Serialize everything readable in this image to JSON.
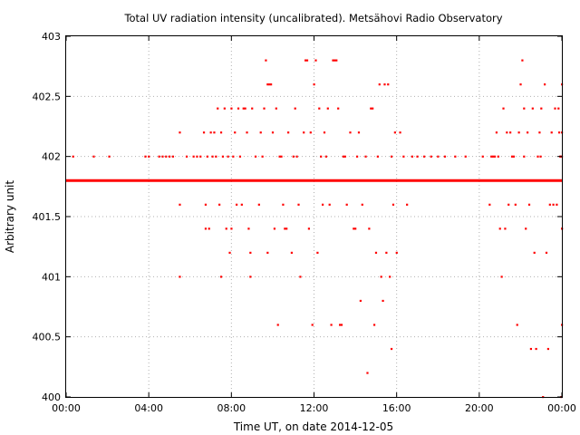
{
  "chart_data": {
    "type": "scatter",
    "title": "Total UV radiation intensity (uncalibrated). Metsähovi Radio Observatory",
    "xlabel": "Time UT, on date 2014-12-05",
    "ylabel": "Arbitrary unit",
    "xlim": [
      "00:00",
      "24:00"
    ],
    "ylim": [
      400,
      403
    ],
    "grid": true,
    "marker_color": "#ff0000",
    "x_ticks": [
      "00:00",
      "04:00",
      "08:00",
      "12:00",
      "16:00",
      "20:00",
      "00:00"
    ],
    "y_ticks": [
      "400",
      "400.5",
      "401",
      "401.5",
      "402",
      "402.5",
      "403"
    ],
    "baseline": {
      "value": 401.8,
      "from": "00:00",
      "to": "24:00"
    },
    "points": [
      [
        "00:20",
        402
      ],
      [
        "01:20",
        402
      ],
      [
        "02:05",
        402
      ],
      [
        "03:50",
        402
      ],
      [
        "04:00",
        402
      ],
      [
        "04:30",
        402
      ],
      [
        "04:40",
        402
      ],
      [
        "04:50",
        402
      ],
      [
        "05:00",
        402
      ],
      [
        "05:10",
        402
      ],
      [
        "05:30",
        402.2
      ],
      [
        "05:30",
        401.6
      ],
      [
        "05:30",
        401
      ],
      [
        "05:50",
        402
      ],
      [
        "06:10",
        402
      ],
      [
        "06:30",
        402
      ],
      [
        "06:40",
        402.2
      ],
      [
        "06:45",
        401.6
      ],
      [
        "06:45",
        401.4
      ],
      [
        "06:55",
        401.4
      ],
      [
        "07:00",
        402.2
      ],
      [
        "07:10",
        402.2
      ],
      [
        "07:15",
        402
      ],
      [
        "07:20",
        402.4
      ],
      [
        "07:25",
        401.6
      ],
      [
        "07:30",
        402.2
      ],
      [
        "07:30",
        401
      ],
      [
        "07:40",
        402.4
      ],
      [
        "07:45",
        401.4
      ],
      [
        "07:50",
        402
      ],
      [
        "07:55",
        401.2
      ],
      [
        "08:00",
        401.4
      ],
      [
        "08:00",
        402.4
      ],
      [
        "08:10",
        402.2
      ],
      [
        "08:15",
        401.6
      ],
      [
        "08:20",
        402.4
      ],
      [
        "08:25",
        402
      ],
      [
        "08:30",
        401.6
      ],
      [
        "08:35",
        402.4
      ],
      [
        "08:40",
        402.4
      ],
      [
        "08:45",
        402.2
      ],
      [
        "08:50",
        401.4
      ],
      [
        "08:55",
        401.2
      ],
      [
        "08:55",
        401
      ],
      [
        "09:00",
        402.4
      ],
      [
        "09:10",
        402
      ],
      [
        "09:20",
        401.6
      ],
      [
        "09:25",
        402.2
      ],
      [
        "09:35",
        402.4
      ],
      [
        "09:40",
        402.8
      ],
      [
        "09:45",
        402.6
      ],
      [
        "09:50",
        402.6
      ],
      [
        "09:55",
        402.6
      ],
      [
        "09:45",
        401.2
      ],
      [
        "10:00",
        402.2
      ],
      [
        "10:05",
        401.4
      ],
      [
        "10:10",
        402.4
      ],
      [
        "10:15",
        400.6
      ],
      [
        "10:20",
        402
      ],
      [
        "10:30",
        401.6
      ],
      [
        "10:35",
        401.4
      ],
      [
        "10:40",
        401.4
      ],
      [
        "10:45",
        402.2
      ],
      [
        "10:55",
        401.2
      ],
      [
        "11:00",
        402
      ],
      [
        "11:05",
        402.4
      ],
      [
        "11:15",
        401.6
      ],
      [
        "11:20",
        401
      ],
      [
        "11:30",
        402.2
      ],
      [
        "11:35",
        402.8
      ],
      [
        "11:40",
        402.8
      ],
      [
        "11:45",
        401.4
      ],
      [
        "11:50",
        402.2
      ],
      [
        "11:55",
        400.6
      ],
      [
        "12:00",
        402.6
      ],
      [
        "12:05",
        402.8
      ],
      [
        "12:10",
        401.2
      ],
      [
        "12:15",
        402.4
      ],
      [
        "12:20",
        402
      ],
      [
        "12:25",
        401.6
      ],
      [
        "12:30",
        402.2
      ],
      [
        "12:40",
        402.4
      ],
      [
        "12:45",
        401.6
      ],
      [
        "12:50",
        400.6
      ],
      [
        "12:55",
        402.8
      ],
      [
        "13:00",
        402.8
      ],
      [
        "13:05",
        402.8
      ],
      [
        "13:10",
        402.4
      ],
      [
        "13:15",
        400.6
      ],
      [
        "13:20",
        400.6
      ],
      [
        "13:25",
        402
      ],
      [
        "13:35",
        401.6
      ],
      [
        "13:45",
        402.2
      ],
      [
        "13:55",
        401.4
      ],
      [
        "14:00",
        401.4
      ],
      [
        "14:10",
        402.2
      ],
      [
        "14:15",
        400.8
      ],
      [
        "14:20",
        401.6
      ],
      [
        "14:30",
        402
      ],
      [
        "14:35",
        400.2
      ],
      [
        "14:40",
        401.4
      ],
      [
        "14:45",
        402.4
      ],
      [
        "14:50",
        402.4
      ],
      [
        "14:55",
        400.6
      ],
      [
        "15:00",
        401.2
      ],
      [
        "15:05",
        402
      ],
      [
        "15:10",
        402.6
      ],
      [
        "15:15",
        401
      ],
      [
        "15:20",
        400.8
      ],
      [
        "15:25",
        402.6
      ],
      [
        "15:30",
        401.2
      ],
      [
        "15:35",
        402.6
      ],
      [
        "15:40",
        401
      ],
      [
        "15:45",
        400.4
      ],
      [
        "15:50",
        401.6
      ],
      [
        "15:55",
        402.2
      ],
      [
        "16:00",
        401.2
      ],
      [
        "16:10",
        402.2
      ],
      [
        "16:20",
        402
      ],
      [
        "16:30",
        401.6
      ],
      [
        "16:45",
        402
      ],
      [
        "17:00",
        402
      ],
      [
        "17:20",
        402
      ],
      [
        "17:40",
        402
      ],
      [
        "18:00",
        402
      ],
      [
        "18:20",
        402
      ],
      [
        "18:50",
        402
      ],
      [
        "19:20",
        402
      ],
      [
        "20:10",
        402
      ],
      [
        "20:30",
        401.6
      ],
      [
        "20:35",
        402
      ],
      [
        "20:50",
        402.2
      ],
      [
        "20:55",
        402
      ],
      [
        "21:00",
        401.4
      ],
      [
        "21:05",
        401
      ],
      [
        "21:10",
        402.4
      ],
      [
        "21:15",
        401.4
      ],
      [
        "21:20",
        402.2
      ],
      [
        "21:25",
        401.6
      ],
      [
        "21:30",
        402.2
      ],
      [
        "21:35",
        402
      ],
      [
        "21:45",
        401.6
      ],
      [
        "21:50",
        400.6
      ],
      [
        "21:55",
        402.2
      ],
      [
        "22:00",
        402.6
      ],
      [
        "22:05",
        402.8
      ],
      [
        "22:10",
        402.4
      ],
      [
        "22:15",
        401.4
      ],
      [
        "22:20",
        402.2
      ],
      [
        "22:25",
        401.6
      ],
      [
        "22:30",
        400.4
      ],
      [
        "22:35",
        402.4
      ],
      [
        "22:40",
        401.2
      ],
      [
        "22:45",
        400.4
      ],
      [
        "22:50",
        402
      ],
      [
        "22:55",
        402.2
      ],
      [
        "23:00",
        402.4
      ],
      [
        "23:05",
        400
      ],
      [
        "23:10",
        402.6
      ],
      [
        "23:15",
        401.2
      ],
      [
        "23:20",
        400.4
      ],
      [
        "23:25",
        401.6
      ],
      [
        "23:30",
        402.2
      ],
      [
        "23:35",
        401.6
      ],
      [
        "23:40",
        402.4
      ],
      [
        "23:45",
        401.6
      ],
      [
        "23:50",
        402.4
      ],
      [
        "23:55",
        402
      ],
      [
        "23:58",
        400
      ],
      [
        "24:00",
        401.4
      ],
      [
        "24:00",
        400.6
      ],
      [
        "24:00",
        402.2
      ],
      [
        "24:00",
        402
      ],
      [
        "24:00",
        402.6
      ],
      [
        "24:00",
        401.4
      ],
      [
        "23:52",
        402.2
      ],
      [
        "23:56",
        402
      ],
      [
        "22:58",
        402
      ],
      [
        "22:10",
        402
      ],
      [
        "21:40",
        402
      ],
      [
        "20:45",
        402
      ],
      [
        "20:40",
        402
      ],
      [
        "06:20",
        402
      ],
      [
        "06:50",
        402
      ],
      [
        "07:05",
        402
      ],
      [
        "07:35",
        402
      ],
      [
        "08:05",
        402
      ],
      [
        "09:30",
        402
      ],
      [
        "10:25",
        402
      ],
      [
        "11:10",
        402
      ],
      [
        "12:35",
        402
      ],
      [
        "13:30",
        402
      ],
      [
        "14:05",
        402
      ],
      [
        "15:45",
        402
      ]
    ]
  }
}
